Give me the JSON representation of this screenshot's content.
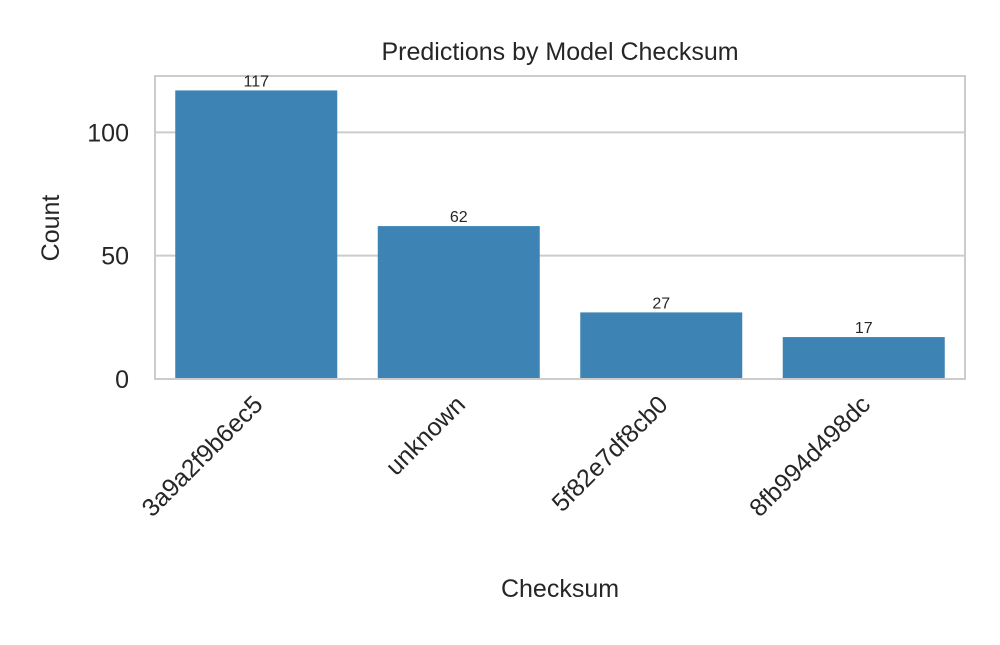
{
  "chart_data": {
    "type": "bar",
    "title": "Predictions by Model Checksum",
    "xlabel": "Checksum",
    "ylabel": "Count",
    "categories": [
      "3a9a2f9b6ec5",
      "unknown",
      "5f82e7df8cb0",
      "8fb994d498dc"
    ],
    "values": [
      117,
      62,
      27,
      17
    ],
    "value_labels": [
      "117",
      "62",
      "27",
      "17"
    ],
    "yticks": [
      0,
      50,
      100
    ],
    "ytick_labels": [
      "0",
      "50",
      "100"
    ],
    "ylim": [
      0,
      122.85
    ],
    "grid": "horizontal",
    "x_tick_rotation": "45 degrees",
    "colors": {
      "bar": "#3d84b4",
      "grid": "#cccccc",
      "frame": "#cccccc",
      "text": "#262626"
    }
  }
}
